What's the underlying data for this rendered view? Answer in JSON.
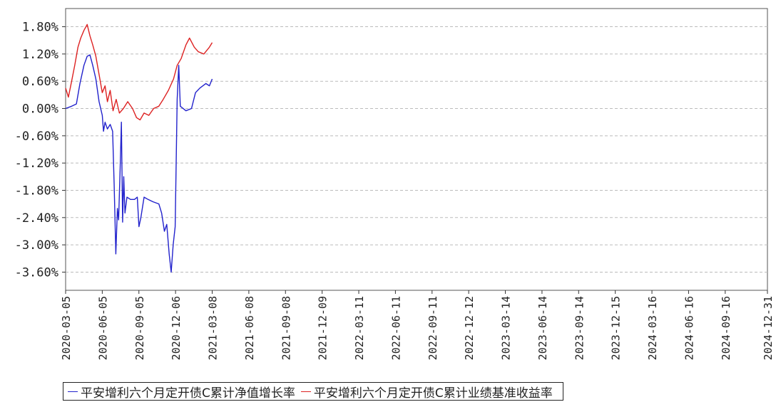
{
  "chart_data": {
    "type": "line",
    "title": "",
    "xlabel": "",
    "ylabel": "",
    "grid": true,
    "legend_position": "bottom-left",
    "x_range": [
      "2020-03-05",
      "2024-12-31"
    ],
    "ylim": [
      -4.0,
      2.2
    ],
    "y_ticks": [
      "1.80%",
      "1.20%",
      "0.60%",
      "0.00%",
      "-0.60%",
      "-1.20%",
      "-1.80%",
      "-2.40%",
      "-3.00%",
      "-3.60%"
    ],
    "y_tick_values": [
      1.8,
      1.2,
      0.6,
      0.0,
      -0.6,
      -1.2,
      -1.8,
      -2.4,
      -3.0,
      -3.6
    ],
    "x_ticks": [
      "2020-03-05",
      "2020-06-05",
      "2020-09-05",
      "2020-12-06",
      "2021-03-08",
      "2021-06-08",
      "2021-09-08",
      "2021-12-09",
      "2022-03-11",
      "2022-06-11",
      "2022-09-11",
      "2022-12-12",
      "2023-03-14",
      "2023-06-14",
      "2023-09-14",
      "2023-12-15",
      "2024-03-16",
      "2024-06-16",
      "2024-09-16",
      "2024-12-31"
    ],
    "series": [
      {
        "name": "平安增利六个月定开债C累计净值增长率",
        "color": "#2222cc",
        "points": [
          [
            "2020-03-05",
            0.0
          ],
          [
            "2020-03-20",
            0.05
          ],
          [
            "2020-04-01",
            0.1
          ],
          [
            "2020-04-10",
            0.55
          ],
          [
            "2020-04-20",
            0.95
          ],
          [
            "2020-04-28",
            1.15
          ],
          [
            "2020-05-05",
            1.18
          ],
          [
            "2020-05-12",
            0.95
          ],
          [
            "2020-05-20",
            0.65
          ],
          [
            "2020-05-28",
            0.15
          ],
          [
            "2020-06-05",
            -0.15
          ],
          [
            "2020-06-08",
            -0.5
          ],
          [
            "2020-06-12",
            -0.3
          ],
          [
            "2020-06-18",
            -0.45
          ],
          [
            "2020-06-25",
            -0.35
          ],
          [
            "2020-07-01",
            -0.5
          ],
          [
            "2020-07-05",
            -1.7
          ],
          [
            "2020-07-09",
            -3.2
          ],
          [
            "2020-07-13",
            -2.2
          ],
          [
            "2020-07-16",
            -2.45
          ],
          [
            "2020-07-20",
            -1.3
          ],
          [
            "2020-07-23",
            -0.3
          ],
          [
            "2020-07-26",
            -2.5
          ],
          [
            "2020-07-29",
            -1.5
          ],
          [
            "2020-08-01",
            -2.3
          ],
          [
            "2020-08-06",
            -1.95
          ],
          [
            "2020-08-15",
            -2.0
          ],
          [
            "2020-08-25",
            -2.0
          ],
          [
            "2020-09-01",
            -1.95
          ],
          [
            "2020-09-05",
            -2.6
          ],
          [
            "2020-09-10",
            -2.4
          ],
          [
            "2020-09-18",
            -1.95
          ],
          [
            "2020-09-28",
            -2.0
          ],
          [
            "2020-10-10",
            -2.05
          ],
          [
            "2020-10-25",
            -2.1
          ],
          [
            "2020-11-01",
            -2.3
          ],
          [
            "2020-11-08",
            -2.7
          ],
          [
            "2020-11-14",
            -2.55
          ],
          [
            "2020-11-20",
            -3.2
          ],
          [
            "2020-11-25",
            -3.6
          ],
          [
            "2020-11-30",
            -3.0
          ],
          [
            "2020-12-05",
            -2.6
          ],
          [
            "2020-12-10",
            0.2
          ],
          [
            "2020-12-14",
            0.95
          ],
          [
            "2020-12-18",
            0.05
          ],
          [
            "2021-01-01",
            -0.05
          ],
          [
            "2021-01-15",
            0.0
          ],
          [
            "2021-01-25",
            0.35
          ],
          [
            "2021-02-05",
            0.45
          ],
          [
            "2021-02-20",
            0.55
          ],
          [
            "2021-03-01",
            0.5
          ],
          [
            "2021-03-08",
            0.65
          ]
        ]
      },
      {
        "name": "平安增利六个月定开债C累计业绩基准收益率",
        "color": "#dd2222",
        "points": [
          [
            "2020-03-05",
            0.45
          ],
          [
            "2020-03-12",
            0.25
          ],
          [
            "2020-03-20",
            0.6
          ],
          [
            "2020-03-28",
            0.95
          ],
          [
            "2020-04-05",
            1.35
          ],
          [
            "2020-04-12",
            1.55
          ],
          [
            "2020-04-20",
            1.72
          ],
          [
            "2020-04-28",
            1.85
          ],
          [
            "2020-05-05",
            1.6
          ],
          [
            "2020-05-12",
            1.4
          ],
          [
            "2020-05-20",
            1.15
          ],
          [
            "2020-05-28",
            0.75
          ],
          [
            "2020-06-05",
            0.35
          ],
          [
            "2020-06-12",
            0.5
          ],
          [
            "2020-06-18",
            0.15
          ],
          [
            "2020-06-25",
            0.4
          ],
          [
            "2020-07-02",
            -0.05
          ],
          [
            "2020-07-10",
            0.2
          ],
          [
            "2020-07-18",
            -0.1
          ],
          [
            "2020-07-28",
            0.0
          ],
          [
            "2020-08-08",
            0.15
          ],
          [
            "2020-08-20",
            0.0
          ],
          [
            "2020-08-30",
            -0.2
          ],
          [
            "2020-09-08",
            -0.25
          ],
          [
            "2020-09-18",
            -0.1
          ],
          [
            "2020-09-30",
            -0.15
          ],
          [
            "2020-10-12",
            0.0
          ],
          [
            "2020-10-25",
            0.05
          ],
          [
            "2020-11-05",
            0.2
          ],
          [
            "2020-11-18",
            0.4
          ],
          [
            "2020-12-01",
            0.65
          ],
          [
            "2020-12-10",
            0.95
          ],
          [
            "2020-12-20",
            1.1
          ],
          [
            "2021-01-01",
            1.4
          ],
          [
            "2021-01-10",
            1.55
          ],
          [
            "2021-01-22",
            1.35
          ],
          [
            "2021-02-01",
            1.25
          ],
          [
            "2021-02-15",
            1.2
          ],
          [
            "2021-03-01",
            1.35
          ],
          [
            "2021-03-08",
            1.45
          ]
        ]
      }
    ]
  }
}
